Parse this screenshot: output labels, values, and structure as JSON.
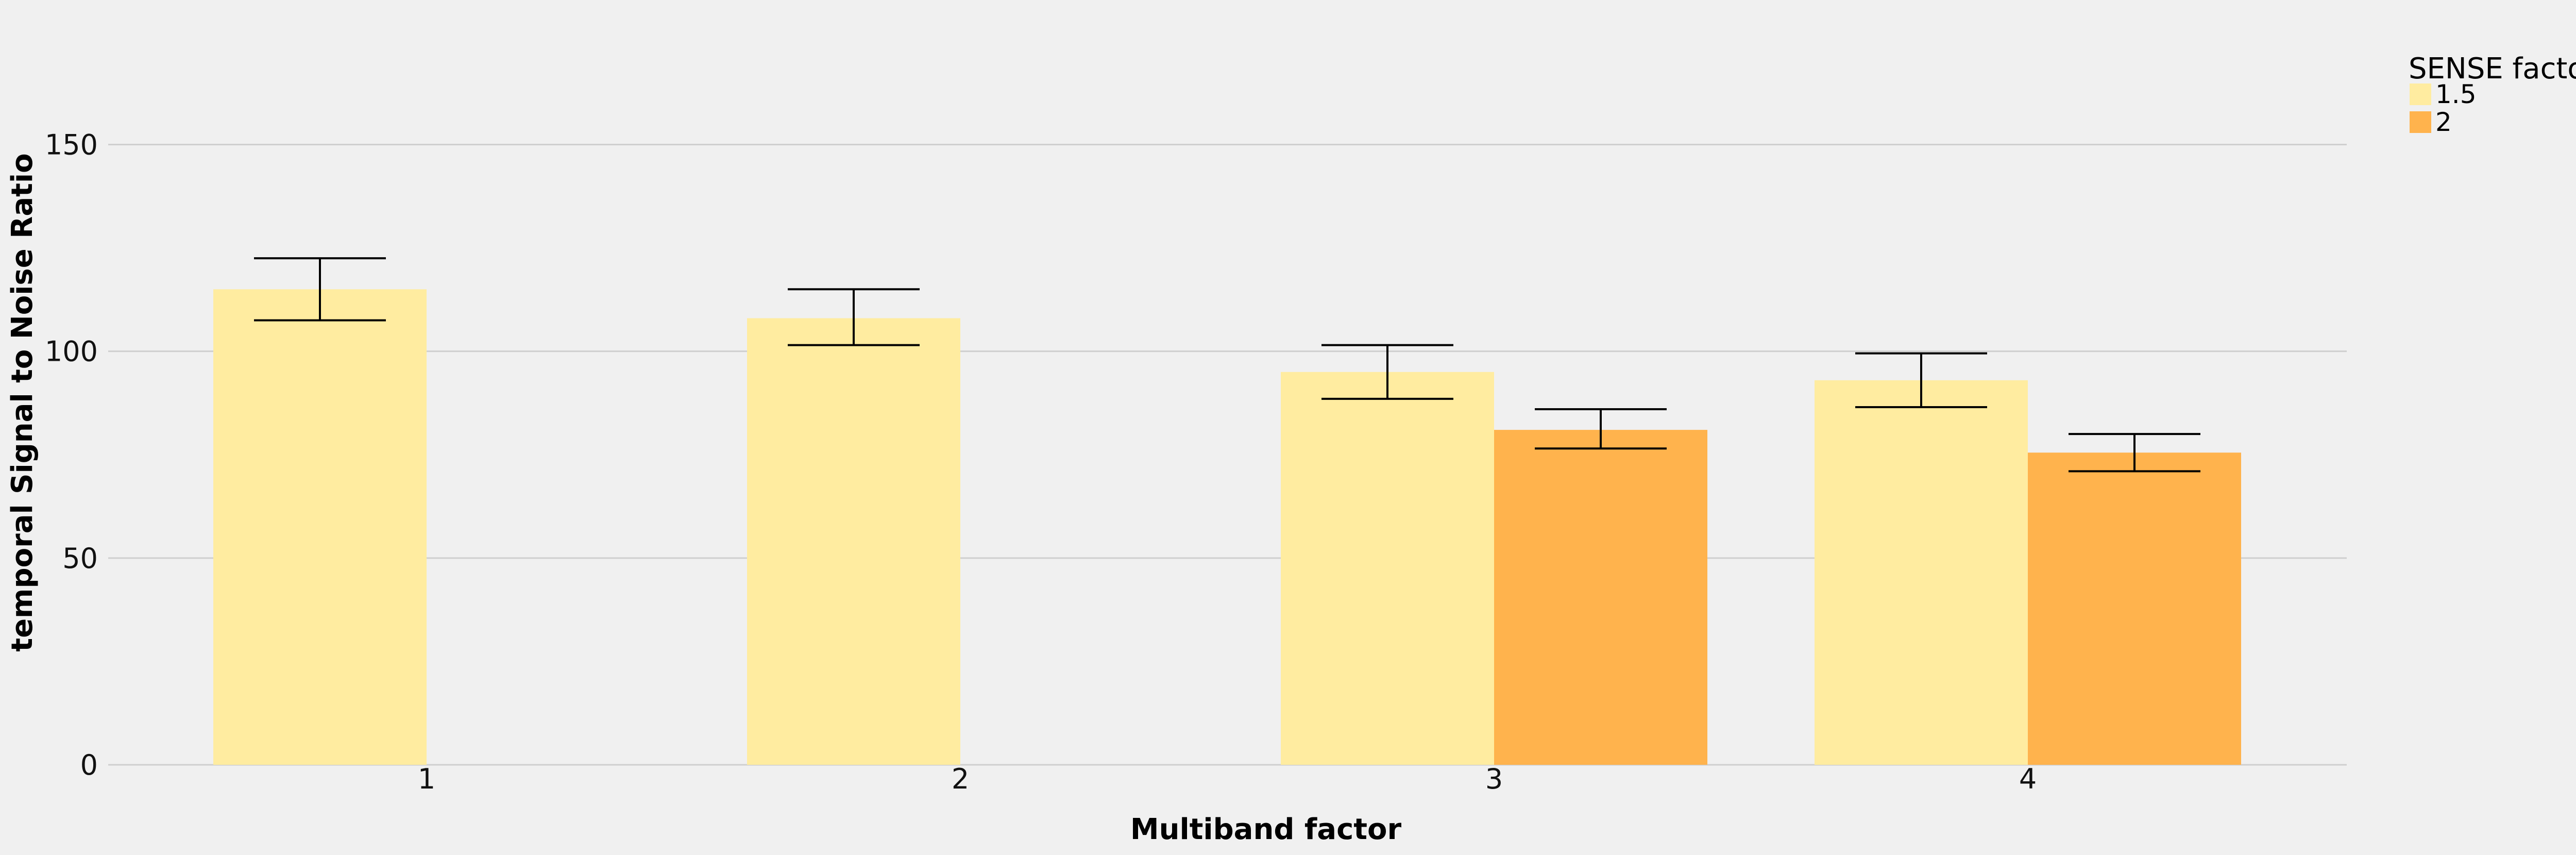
{
  "chart_data": {
    "type": "bar",
    "xlabel": "Multiband factor",
    "ylabel": "temporal Signal to Noise Ratio",
    "categories": [
      "1",
      "2",
      "3",
      "4"
    ],
    "ylim": [
      0,
      150
    ],
    "yticks": [
      0,
      50,
      100,
      150
    ],
    "grid": true,
    "legend": {
      "title": "SENSE factor",
      "placement": "top-right outside"
    },
    "series": [
      {
        "name": "1.5",
        "color": "#ffeca0",
        "values": [
          115,
          108,
          95,
          93
        ],
        "err_low": [
          107.5,
          101.5,
          88.5,
          86.5
        ],
        "err_high": [
          122.5,
          115,
          101.5,
          99.5
        ]
      },
      {
        "name": "2",
        "color": "#ffb34d",
        "values": [
          null,
          null,
          81,
          75.5
        ],
        "err_low": [
          null,
          null,
          76.5,
          71
        ],
        "err_high": [
          null,
          null,
          86,
          80
        ]
      }
    ]
  }
}
